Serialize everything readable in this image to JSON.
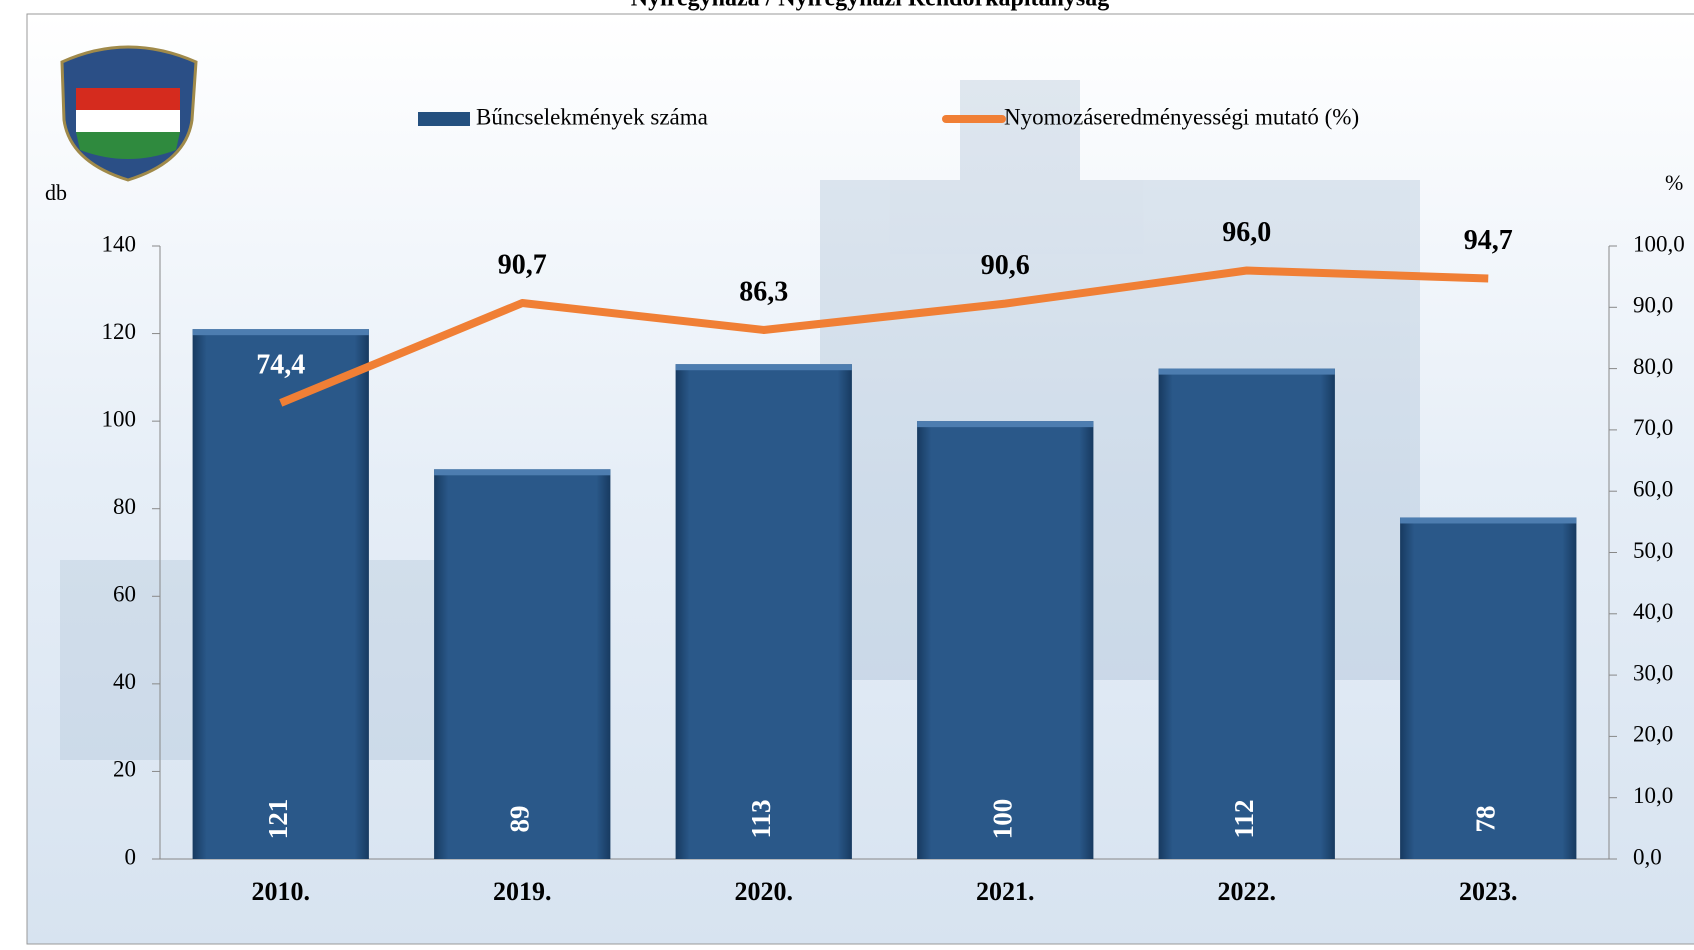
{
  "chart_data": {
    "type": "bar_line",
    "title": "Nyíregyháza / Nyíregyházi Rendőrkapitányság",
    "y_label": "db",
    "y2_label": "%",
    "categories": [
      "2010.",
      "2019.",
      "2020.",
      "2021.",
      "2022.",
      "2023."
    ],
    "series": [
      {
        "name": "Bűncselekmények száma",
        "color": "#24507f",
        "type": "bar",
        "values": [
          121,
          89,
          113,
          100,
          112,
          78
        ]
      },
      {
        "name": "Nyomozáseredményességi mutató (%)",
        "color": "#f07f35",
        "type": "line",
        "axis": "y2",
        "values": [
          74.4,
          90.7,
          86.3,
          90.6,
          96.0,
          94.7
        ],
        "value_labels": [
          "74,4",
          "90,7",
          "86,3",
          "90,6",
          "96,0",
          "94,7"
        ]
      }
    ],
    "ylim": [
      0,
      140
    ],
    "yticks": [
      0,
      20,
      40,
      60,
      80,
      100,
      120,
      140
    ],
    "y2lim": [
      0,
      100
    ],
    "y2ticks": [
      {
        "value": 0,
        "label": "0,0"
      },
      {
        "value": 10,
        "label": "10,0"
      },
      {
        "value": 20,
        "label": "20,0"
      },
      {
        "value": 30,
        "label": "30,0"
      },
      {
        "value": 40,
        "label": "40,0"
      },
      {
        "value": 50,
        "label": "50,0"
      },
      {
        "value": 60,
        "label": "60,0"
      },
      {
        "value": 70,
        "label": "70,0"
      },
      {
        "value": 80,
        "label": "80,0"
      },
      {
        "value": 90,
        "label": "90,0"
      },
      {
        "value": 100,
        "label": "100,0"
      }
    ],
    "legend": "top"
  }
}
